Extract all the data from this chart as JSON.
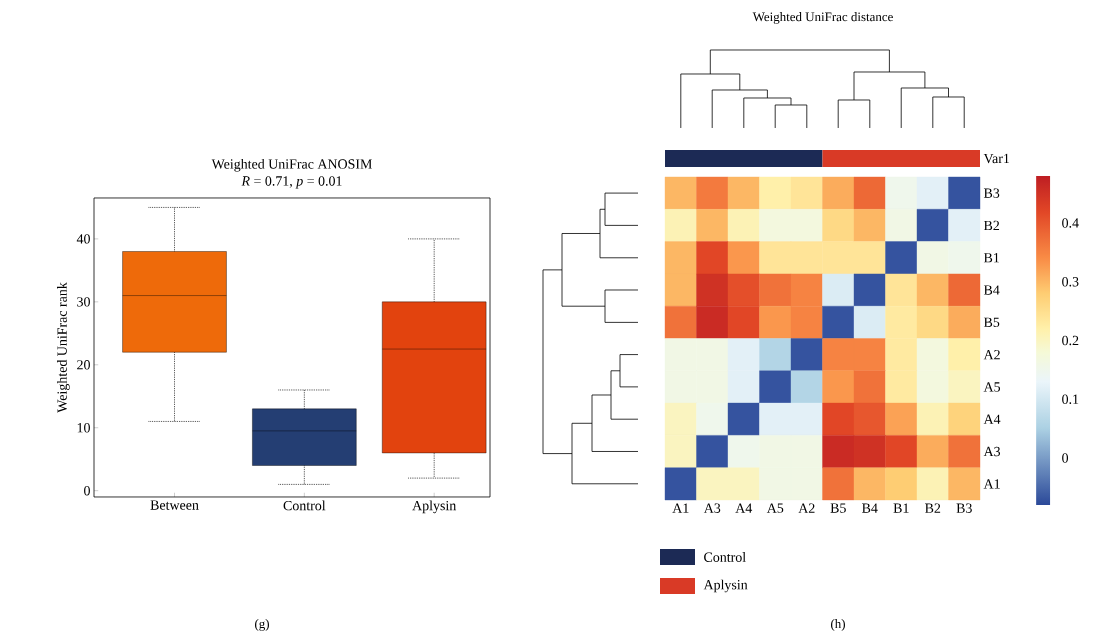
{
  "chart_data": [
    {
      "type": "box",
      "title": "Weighted UniFrac ANOSIM",
      "subtitle": "*R* = 0.71, *p* = 0.01",
      "ylabel": "Weighted UniFrac rank",
      "categories": [
        "Between",
        "Control",
        "Aplysin"
      ],
      "boxes": [
        {
          "low": 11,
          "q1": 22,
          "median": 31,
          "q3": 38,
          "high": 45
        },
        {
          "low": 1,
          "q1": 4,
          "median": 9.5,
          "q3": 13,
          "high": 16
        },
        {
          "low": 2,
          "q1": 6,
          "median": 22.5,
          "q3": 30,
          "high": 40
        }
      ],
      "colors": [
        "#ee6a0a",
        "#243e73",
        "#e2430e"
      ],
      "ylim": [
        -1,
        46.5
      ],
      "yticks": [
        0,
        10,
        20,
        30,
        40
      ],
      "annotations": [
        "(g)"
      ]
    },
    {
      "type": "heatmap",
      "title": "Weighted UniFrac distance",
      "categories": [
        "A1",
        "A3",
        "A4",
        "A5",
        "A2",
        "B5",
        "B4",
        "B1",
        "B2",
        "B3"
      ],
      "y_categories": [
        "B3",
        "B2",
        "B1",
        "B4",
        "B5",
        "A2",
        "A5",
        "A4",
        "A3",
        "A1"
      ],
      "cells": [
        [
          0.3,
          0.36,
          0.3,
          0.22,
          0.24,
          0.31,
          0.38,
          0.15,
          0.12,
          -0.07
        ],
        [
          0.21,
          0.3,
          0.21,
          0.17,
          0.17,
          0.26,
          0.3,
          0.16,
          -0.07,
          0.12
        ],
        [
          0.3,
          0.42,
          0.33,
          0.24,
          0.24,
          0.24,
          0.24,
          -0.07,
          0.16,
          0.15
        ],
        [
          0.3,
          0.45,
          0.41,
          0.37,
          0.35,
          0.11,
          -0.07,
          0.24,
          0.3,
          0.38
        ],
        [
          0.37,
          0.46,
          0.42,
          0.33,
          0.35,
          -0.07,
          0.11,
          0.23,
          0.26,
          0.31
        ],
        [
          0.16,
          0.16,
          0.12,
          0.06,
          -0.07,
          0.35,
          0.35,
          0.23,
          0.17,
          0.22
        ],
        [
          0.16,
          0.16,
          0.12,
          -0.07,
          0.06,
          0.33,
          0.37,
          0.23,
          0.17,
          0.2
        ],
        [
          0.2,
          0.15,
          -0.07,
          0.12,
          0.12,
          0.42,
          0.4,
          0.32,
          0.21,
          0.27
        ],
        [
          0.2,
          -0.07,
          0.15,
          0.16,
          0.16,
          0.46,
          0.45,
          0.42,
          0.31,
          0.37
        ],
        [
          -0.07,
          0.2,
          0.2,
          0.16,
          0.16,
          0.37,
          0.3,
          0.28,
          0.21,
          0.3
        ]
      ],
      "clim": [
        -0.08,
        0.48
      ],
      "cticks": [
        0,
        0.1,
        0.2,
        0.3,
        0.4
      ],
      "annotations": [
        "Var1",
        "(h)",
        "Control",
        "Aplysin"
      ]
    }
  ]
}
